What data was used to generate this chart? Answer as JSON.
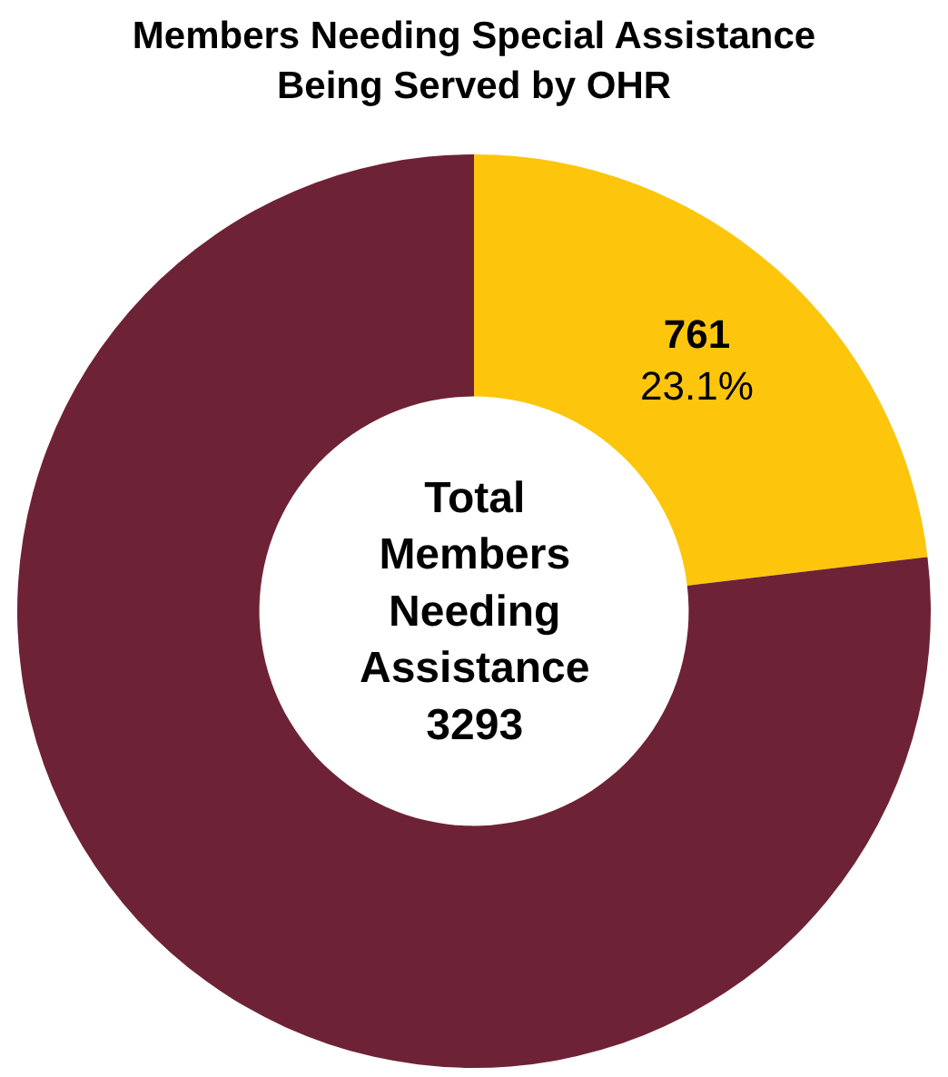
{
  "chart_data": {
    "type": "donut",
    "title": "Members Needing Special Assistance\nBeing Served by OHR",
    "categories": [
      null,
      null
    ],
    "values": [
      761,
      2532
    ],
    "colors": [
      "#fdc60c",
      "#6e2236"
    ],
    "value_labels": [
      "761\n23.1%",
      null
    ],
    "annotations": [
      "Total\nMembers\nNeeding\nAssistance\n3293"
    ],
    "legend": false
  }
}
